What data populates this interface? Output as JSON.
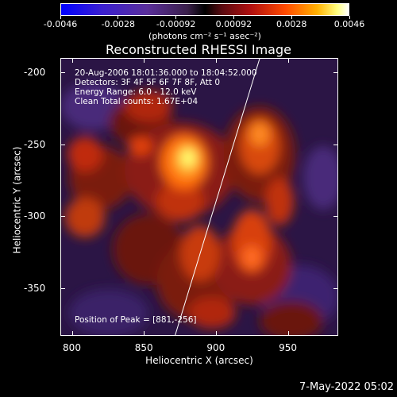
{
  "colorbar": {
    "tick_labels": [
      "-0.0046",
      "-0.0028",
      "-0.00092",
      "0.00092",
      "0.0028",
      "0.0046"
    ],
    "units": "(photons cm⁻² s⁻¹ asec⁻²)"
  },
  "image": {
    "title": "Reconstructed RHESSI Image",
    "info_lines": [
      "20-Aug-2006 18:01:36.000 to 18:04:52.000",
      "Detectors: 3F 4F 5F 6F 7F 8F, Att 0",
      "Energy Range: 6.0 - 12.0 keV",
      "Clean     Total counts: 1.67E+04"
    ],
    "peak_label": "Position of Peak = [881,-256]",
    "x_axis": {
      "label": "Heliocentric X (arcsec)",
      "range": [
        792,
        985
      ],
      "ticks": [
        "800",
        "850",
        "900",
        "950"
      ],
      "tick_values": [
        800,
        850,
        900,
        950
      ]
    },
    "y_axis": {
      "label": "Heliocentric Y (arcsec)",
      "range": [
        -383,
        -190
      ],
      "ticks": [
        "-200",
        "-250",
        "-300",
        "-350"
      ],
      "tick_values": [
        -200,
        -250,
        -300,
        -350
      ]
    }
  },
  "footer": {
    "date": "7-May-2022 05:02"
  },
  "colors": {
    "background": "#000000",
    "limb": "#ffffff",
    "peak": "#ffff70"
  }
}
